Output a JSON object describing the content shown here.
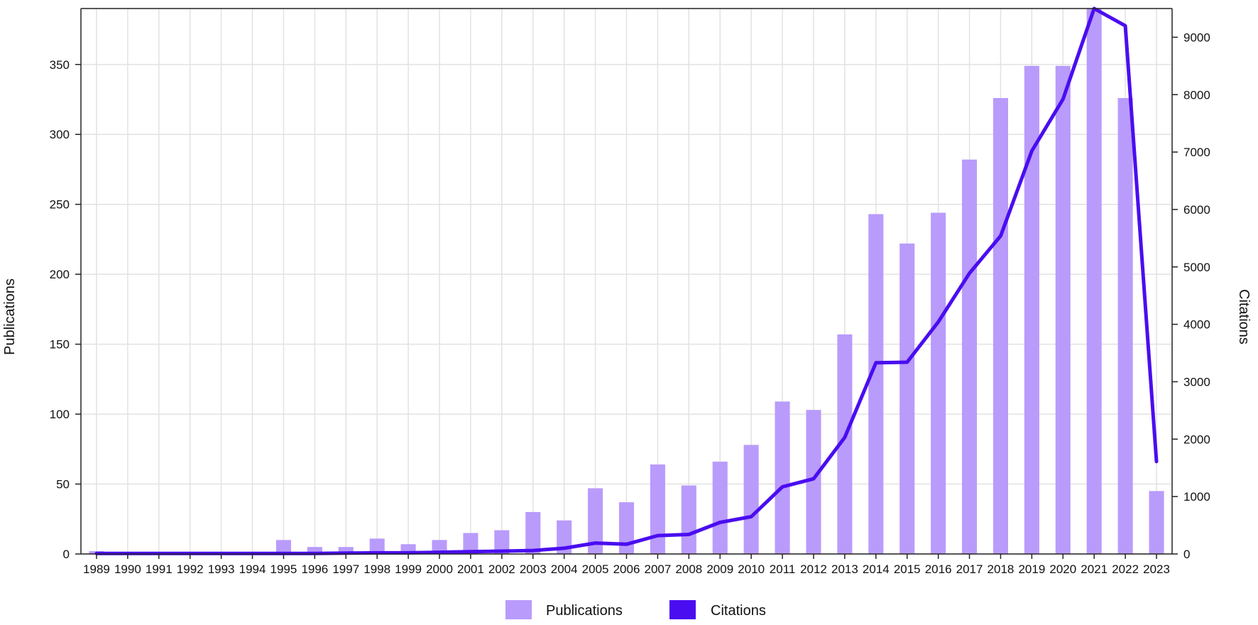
{
  "chart_data": {
    "type": "bar",
    "categories": [
      "1989",
      "1990",
      "1991",
      "1992",
      "1993",
      "1994",
      "1995",
      "1996",
      "1997",
      "1998",
      "1999",
      "2000",
      "2001",
      "2002",
      "2003",
      "2004",
      "2005",
      "2006",
      "2007",
      "2008",
      "2009",
      "2010",
      "2011",
      "2012",
      "2013",
      "2014",
      "2015",
      "2016",
      "2017",
      "2018",
      "2019",
      "2020",
      "2021",
      "2022",
      "2023"
    ],
    "series": [
      {
        "name": "Publications",
        "type": "bar",
        "axis": "left",
        "color": "#b99bfb",
        "values": [
          2,
          0,
          0,
          0,
          0,
          1,
          10,
          5,
          5,
          11,
          7,
          10,
          15,
          17,
          30,
          24,
          47,
          37,
          64,
          49,
          66,
          78,
          109,
          103,
          157,
          243,
          222,
          244,
          282,
          326,
          349,
          349,
          392,
          326,
          45
        ]
      },
      {
        "name": "Citations",
        "type": "line",
        "axis": "right",
        "color": "#4a0df0",
        "values": [
          10,
          10,
          10,
          10,
          10,
          10,
          10,
          10,
          15,
          20,
          20,
          30,
          40,
          50,
          60,
          100,
          190,
          170,
          320,
          340,
          550,
          650,
          1170,
          1310,
          2030,
          3330,
          3340,
          4040,
          4890,
          5540,
          7020,
          7920,
          9500,
          9200,
          1610
        ]
      }
    ],
    "ylabel": "Publications",
    "y2label": "Citations",
    "ylim": [
      0,
      390
    ],
    "y2lim": [
      0,
      9500
    ],
    "yticks": [
      0,
      50,
      100,
      150,
      200,
      250,
      300,
      350
    ],
    "y2ticks": [
      0,
      1000,
      2000,
      3000,
      4000,
      5000,
      6000,
      7000,
      8000,
      9000
    ],
    "grid": true,
    "legend": "bottom-center"
  },
  "legend": {
    "publications_label": "Publications",
    "citations_label": "Citations"
  }
}
